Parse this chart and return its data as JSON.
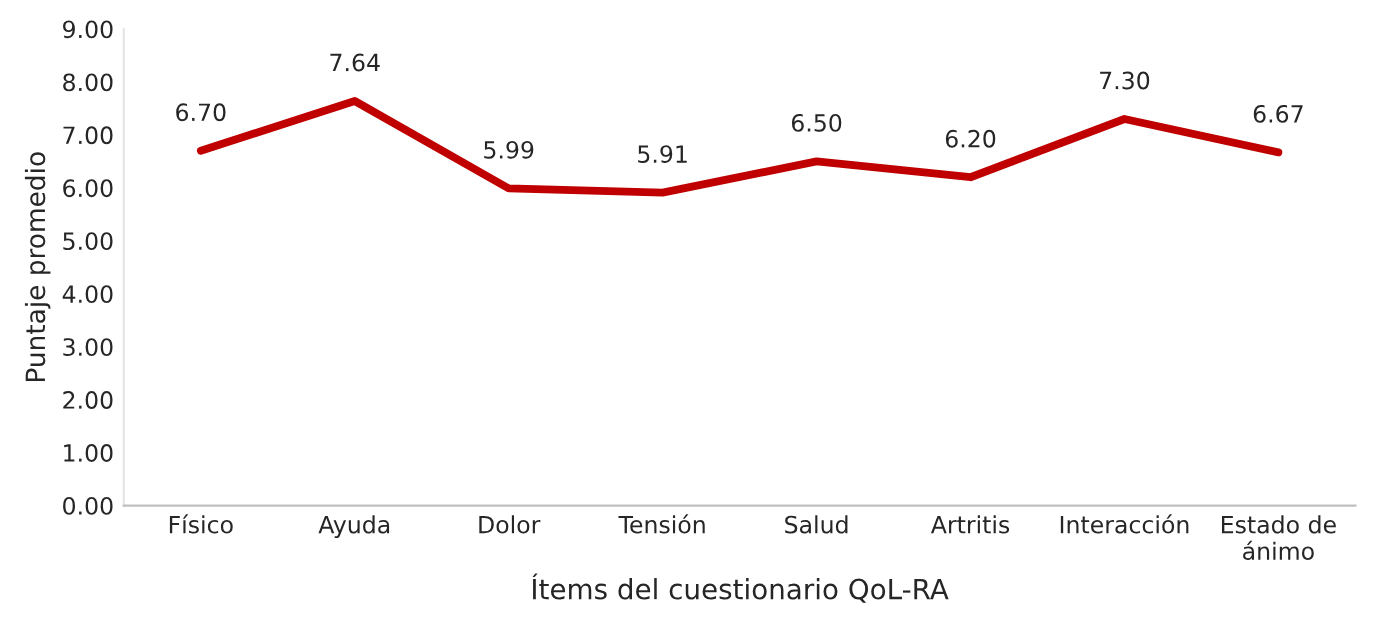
{
  "chart_data": {
    "type": "line",
    "xlabel": "Ítems del cuestionario QoL-RA",
    "ylabel": "Puntaje promedio",
    "categories": [
      "Físico",
      "Ayuda",
      "Dolor",
      "Tensión",
      "Salud",
      "Artritis",
      "Interacción",
      "Estado de\nánimo"
    ],
    "series": [
      {
        "color": "#c00000",
        "values": [
          6.7,
          7.64,
          5.99,
          5.91,
          6.5,
          6.2,
          7.3,
          6.67
        ],
        "value_labels": [
          "6.70",
          "7.64",
          "5.99",
          "5.91",
          "6.50",
          "6.20",
          "7.30",
          "6.67"
        ]
      }
    ],
    "ylim": [
      0,
      9
    ],
    "yticks": [
      {
        "value": 0,
        "label": "0.00"
      },
      {
        "value": 1,
        "label": "1.00"
      },
      {
        "value": 2,
        "label": "2.00"
      },
      {
        "value": 3,
        "label": "3.00"
      },
      {
        "value": 4,
        "label": "4.00"
      },
      {
        "value": 5,
        "label": "5.00"
      },
      {
        "value": 6,
        "label": "6.00"
      },
      {
        "value": 7,
        "label": "7.00"
      },
      {
        "value": 8,
        "label": "8.00"
      },
      {
        "value": 9,
        "label": "9.00"
      }
    ],
    "grid": false,
    "marker": "none",
    "line_style": "solid"
  }
}
